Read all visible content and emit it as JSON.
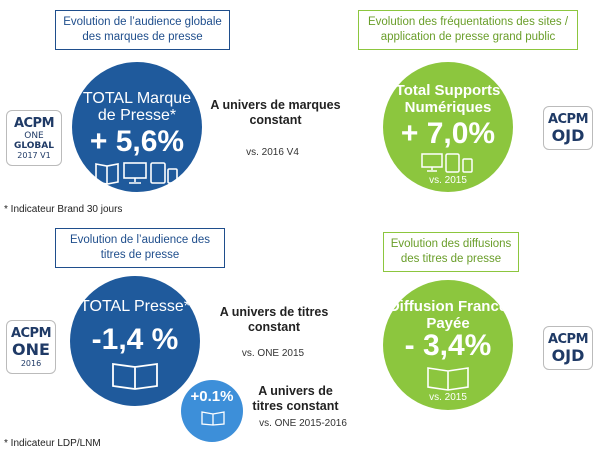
{
  "section1": {
    "box_title": "Evolution de l’audience globale des marques de presse",
    "circle_title": "TOTAL Marque de Presse*",
    "value": "+ 5,6%",
    "context": "A univers de marques constant",
    "vs": "vs. 2016 V4",
    "footnote": "* Indicateur Brand 30 jours",
    "logo": {
      "acpm": "ACPM",
      "line1": "ONE",
      "line2": "GLOBAL",
      "line3": "2017 V1"
    },
    "icons": [
      "book-icon",
      "desktop-icon",
      "tablet-icon",
      "phone-icon"
    ]
  },
  "section2": {
    "box_title": "Evolution des fréquentations des sites / application de presse grand public",
    "circle_title": "Total Supports Numériques",
    "value": "+ 7,0%",
    "vs": "vs. 2015",
    "logo": {
      "acpm": "ACPM",
      "line1": "OJD"
    },
    "icons": [
      "desktop-icon",
      "tablet-icon",
      "phone-icon"
    ]
  },
  "section3": {
    "box_title": "Evolution de l’audience des titres de presse",
    "circle_title": "TOTAL Presse*",
    "value": "-1,4 %",
    "context": "A univers de titres constant",
    "vs": "vs. ONE 2015",
    "small_value": "+0.1%",
    "small_context": "A univers de titres constant",
    "small_vs": "vs. ONE 2015-2016",
    "footnote": "* Indicateur LDP/LNM",
    "logo": {
      "acpm": "ACPM",
      "line1": "ONE",
      "line2": "2016"
    },
    "icons": [
      "book-icon"
    ]
  },
  "section4": {
    "box_title": "Evolution des diffusions des titres de presse",
    "circle_title": "Diffusion France Payée",
    "value": "- 3,4%",
    "vs": "vs. 2015",
    "logo": {
      "acpm": "ACPM",
      "line1": "OJD"
    },
    "icons": [
      "book-icon"
    ]
  },
  "colors": {
    "blue": "#1f5a9c",
    "green": "#8cc63e",
    "light_blue": "#3d8fd9"
  }
}
